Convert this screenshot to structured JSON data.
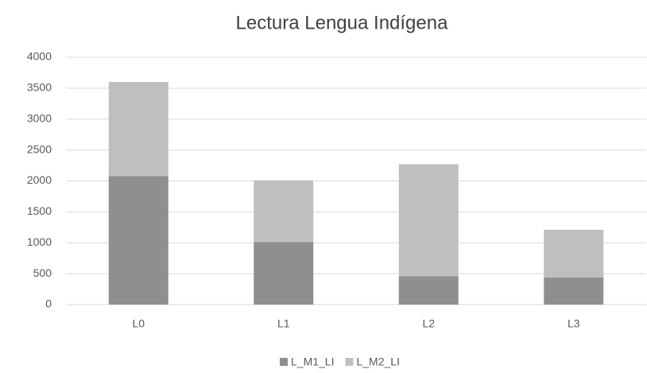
{
  "chart_data": {
    "type": "stacked_bar",
    "title": "Lectura Lengua Indígena",
    "categories": [
      "L0",
      "L1",
      "L2",
      "L3"
    ],
    "series": [
      {
        "name": "L_M1_LI",
        "color": "#8f8f8f",
        "values": [
          2080,
          1010,
          460,
          440
        ]
      },
      {
        "name": "L_M2_LI",
        "color": "#bfbfbf",
        "values": [
          1520,
          1000,
          1810,
          770
        ]
      }
    ],
    "ylim": [
      0,
      4000
    ],
    "yticks": [
      0,
      500,
      1000,
      1500,
      2000,
      2500,
      3000,
      3500,
      4000
    ],
    "grid": true,
    "legend": "bottom"
  }
}
